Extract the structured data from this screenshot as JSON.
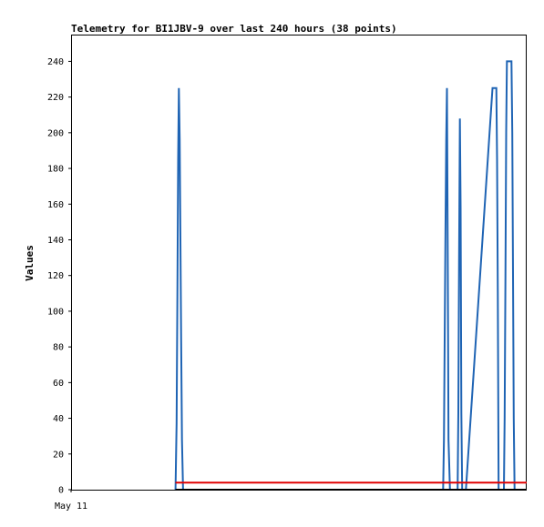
{
  "chart_data": {
    "type": "line",
    "title": "Telemetry for BI1JBV-9 over last 240 hours (38 points)",
    "ylabel": "Values",
    "xlabel": "",
    "ylim": [
      0,
      255
    ],
    "y_ticks": [
      0,
      20,
      40,
      60,
      80,
      100,
      120,
      140,
      160,
      180,
      200,
      220,
      240
    ],
    "x_range_hours": [
      0,
      240
    ],
    "x_tick_labels": [
      {
        "t": 0,
        "label": "May 11"
      }
    ],
    "grid": false,
    "legend": "none",
    "colors": {
      "series_1": "#1f64b4",
      "series_2": "#e00000",
      "series_3": "#000000"
    },
    "series": [
      {
        "points": [
          [
            55,
            0
          ],
          [
            55.6,
            37
          ],
          [
            56,
            111
          ],
          [
            56.4,
            185
          ],
          [
            56.8,
            225
          ],
          [
            57.2,
            196
          ],
          [
            57.6,
            140
          ],
          [
            58,
            84
          ],
          [
            58.4,
            28
          ],
          [
            59,
            0
          ],
          [
            196,
            0
          ],
          [
            196.4,
            28
          ],
          [
            196.8,
            84
          ],
          [
            197.2,
            140
          ],
          [
            197.6,
            196
          ],
          [
            198,
            225
          ],
          [
            198.4,
            140
          ],
          [
            198.8,
            28
          ],
          [
            199.6,
            0
          ],
          [
            200,
            0
          ],
          [
            203.6,
            0
          ],
          [
            204,
            43
          ],
          [
            204.4,
            130
          ],
          [
            204.8,
            208
          ],
          [
            205.2,
            158
          ],
          [
            205.6,
            43
          ],
          [
            206,
            0
          ],
          [
            208,
            0
          ],
          [
            222,
            225
          ],
          [
            224,
            225
          ],
          [
            224.4,
            185
          ],
          [
            224.8,
            111
          ],
          [
            225.2,
            0
          ],
          [
            228,
            0
          ],
          [
            228.4,
            40
          ],
          [
            228.8,
            120
          ],
          [
            229.2,
            200
          ],
          [
            229.6,
            240
          ],
          [
            232,
            240
          ],
          [
            232.4,
            200
          ],
          [
            232.8,
            120
          ],
          [
            233.2,
            40
          ],
          [
            233.6,
            0
          ]
        ]
      },
      {
        "points": [
          [
            55,
            4
          ],
          [
            240,
            4
          ]
        ]
      },
      {
        "points": [
          [
            55,
            0
          ],
          [
            240,
            0
          ]
        ]
      }
    ]
  }
}
